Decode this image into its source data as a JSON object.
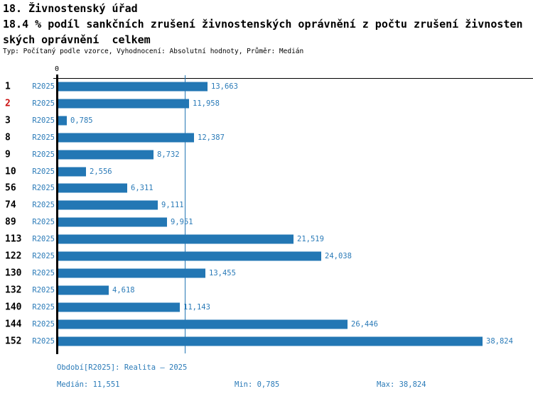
{
  "header": {
    "title": "18. Živnostenský úřad",
    "subtitle_line1": "18.4 % podíl sankčních zrušení živnostenských oprávnění z počtu zrušení živnosten",
    "subtitle_line2": "ských oprávnění  celkem",
    "meta": "Typ: Počítaný podle vzorce, Vyhodnocení: Absolutní hodnoty, Průměr: Medián"
  },
  "chart_data": {
    "type": "bar",
    "orientation": "horizontal",
    "title": "18.4 % podíl sankčních zrušení živnostenských oprávnění z počtu zrušení živnostenských oprávnění celkem",
    "series_label": "R2025",
    "categories": [
      "1",
      "2",
      "3",
      "8",
      "9",
      "10",
      "56",
      "74",
      "89",
      "113",
      "122",
      "130",
      "132",
      "140",
      "144",
      "152"
    ],
    "values": [
      13.663,
      11.958,
      0.785,
      12.387,
      8.732,
      2.556,
      6.311,
      9.111,
      9.951,
      21.519,
      24.038,
      13.455,
      4.618,
      11.143,
      26.446,
      38.824
    ],
    "value_labels": [
      "13,663",
      "11,958",
      "0,785",
      "12,387",
      "8,732",
      "2,556",
      "6,311",
      "9,111",
      "9,951",
      "21,519",
      "24,038",
      "13,455",
      "4,618",
      "11,143",
      "26,446",
      "38,824"
    ],
    "highlighted_category": "2",
    "axis": {
      "zero_label": "0",
      "xlim": [
        0,
        43.4
      ],
      "grid": false
    },
    "median": 11.551,
    "stats": {
      "median": 11.551,
      "min": 0.785,
      "max": 38.824
    },
    "legend_position": "none",
    "colors": {
      "bar": "#2377b4",
      "blue_text": "#2b7bb8",
      "highlight": "#cc1111",
      "axis": "#000000"
    }
  },
  "footer": {
    "period": "Období[R2025]: Realita – 2025",
    "median": "Medián: 11,551",
    "min": "Min: 0,785",
    "max": "Max: 38,824"
  }
}
